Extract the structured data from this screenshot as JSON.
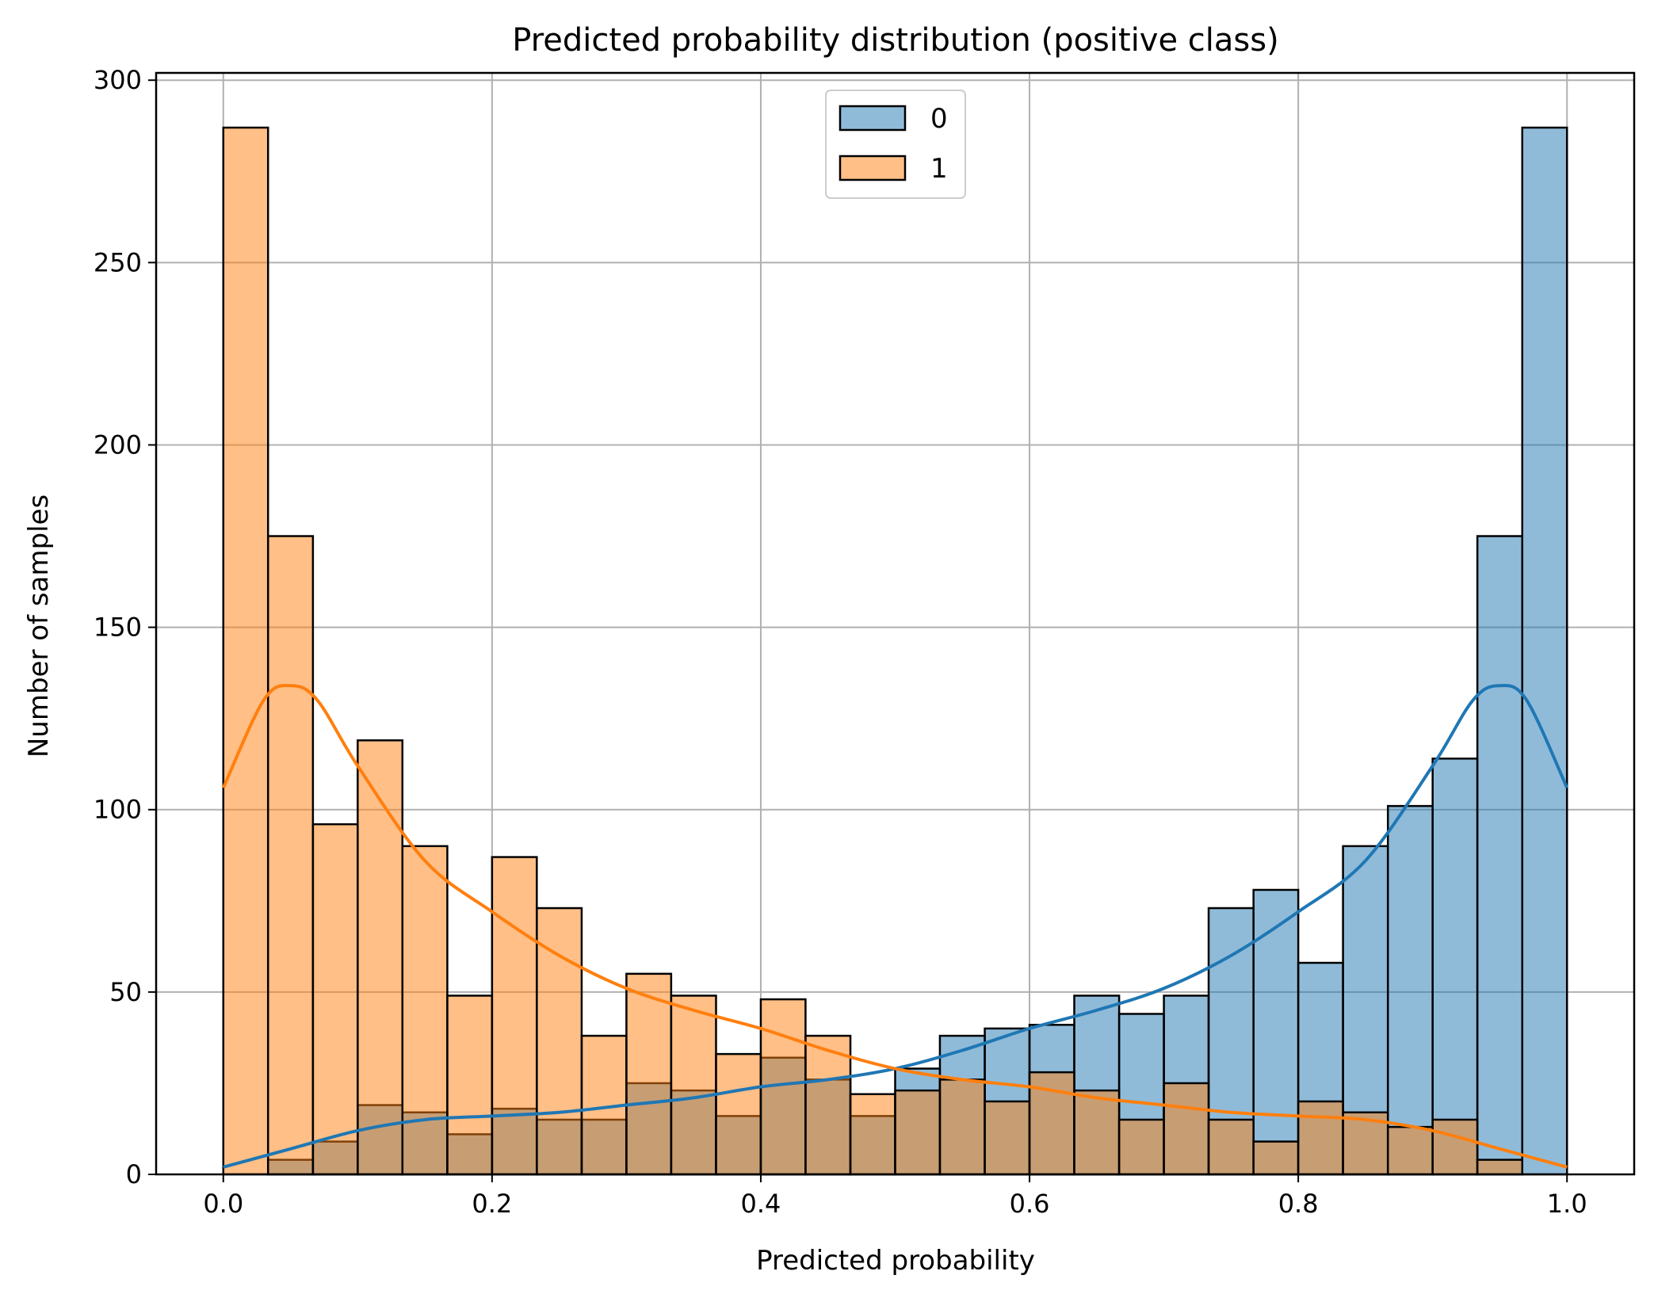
{
  "chart_data": {
    "type": "bar",
    "title": "Predicted probability distribution (positive class)",
    "xlabel": "Predicted probability",
    "ylabel": "Number of samples",
    "xlim": [
      -0.05,
      1.05
    ],
    "ylim": [
      0,
      302
    ],
    "xticks": [
      "0.0",
      "0.2",
      "0.4",
      "0.6",
      "0.8",
      "1.0"
    ],
    "yticks": [
      "0",
      "50",
      "100",
      "150",
      "200",
      "250",
      "300"
    ],
    "grid": true,
    "legend_position": "top-center",
    "bin_edges": [
      0.0,
      0.0333,
      0.0667,
      0.1,
      0.1333,
      0.1667,
      0.2,
      0.2333,
      0.2667,
      0.3,
      0.3333,
      0.3667,
      0.4,
      0.4333,
      0.4667,
      0.5,
      0.5333,
      0.5667,
      0.6,
      0.6333,
      0.6667,
      0.7,
      0.7333,
      0.7667,
      0.8,
      0.8333,
      0.8667,
      0.9,
      0.9333,
      0.9667,
      1.0
    ],
    "series": [
      {
        "name": "0",
        "color": "#1f77b4",
        "values": [
          0,
          4,
          9,
          19,
          17,
          11,
          18,
          15,
          15,
          25,
          23,
          16,
          32,
          26,
          16,
          23,
          26,
          20,
          28,
          23,
          15,
          25,
          15,
          9,
          20,
          17,
          13,
          15,
          4,
          0
        ],
        "hist_values": [
          0,
          4,
          9,
          19,
          17,
          11,
          18,
          15,
          15,
          25,
          23,
          16,
          32,
          26,
          16,
          29,
          38,
          40,
          41,
          49,
          44,
          49,
          73,
          78,
          58,
          90,
          101,
          114,
          175,
          287
        ],
        "kde_x": [
          0.0,
          0.05,
          0.1,
          0.15,
          0.2,
          0.25,
          0.3,
          0.35,
          0.4,
          0.45,
          0.5,
          0.55,
          0.6,
          0.65,
          0.7,
          0.75,
          0.8,
          0.85,
          0.9,
          0.93,
          0.95,
          0.97,
          1.0
        ],
        "kde_y": [
          2,
          7,
          12,
          15,
          16,
          17,
          19,
          21,
          24,
          26,
          29,
          34,
          40,
          45,
          51,
          60,
          72,
          86,
          112,
          130,
          134,
          130,
          106
        ]
      },
      {
        "name": "1",
        "color": "#ff7f0e",
        "values": [
          287,
          175,
          96,
          119,
          90,
          49,
          87,
          73,
          38,
          55,
          49,
          33,
          48,
          38,
          22,
          23,
          26,
          20,
          28,
          23,
          15,
          25,
          15,
          9,
          20,
          17,
          13,
          15,
          4,
          0
        ],
        "kde_x": [
          0.0,
          0.03,
          0.05,
          0.07,
          0.1,
          0.15,
          0.2,
          0.25,
          0.3,
          0.35,
          0.4,
          0.45,
          0.5,
          0.55,
          0.6,
          0.65,
          0.7,
          0.75,
          0.8,
          0.85,
          0.9,
          0.95,
          1.0
        ],
        "kde_y": [
          106,
          130,
          134,
          130,
          112,
          86,
          72,
          60,
          51,
          45,
          40,
          34,
          29,
          26,
          24,
          21,
          19,
          17,
          16,
          15,
          12,
          7,
          2
        ]
      }
    ]
  }
}
